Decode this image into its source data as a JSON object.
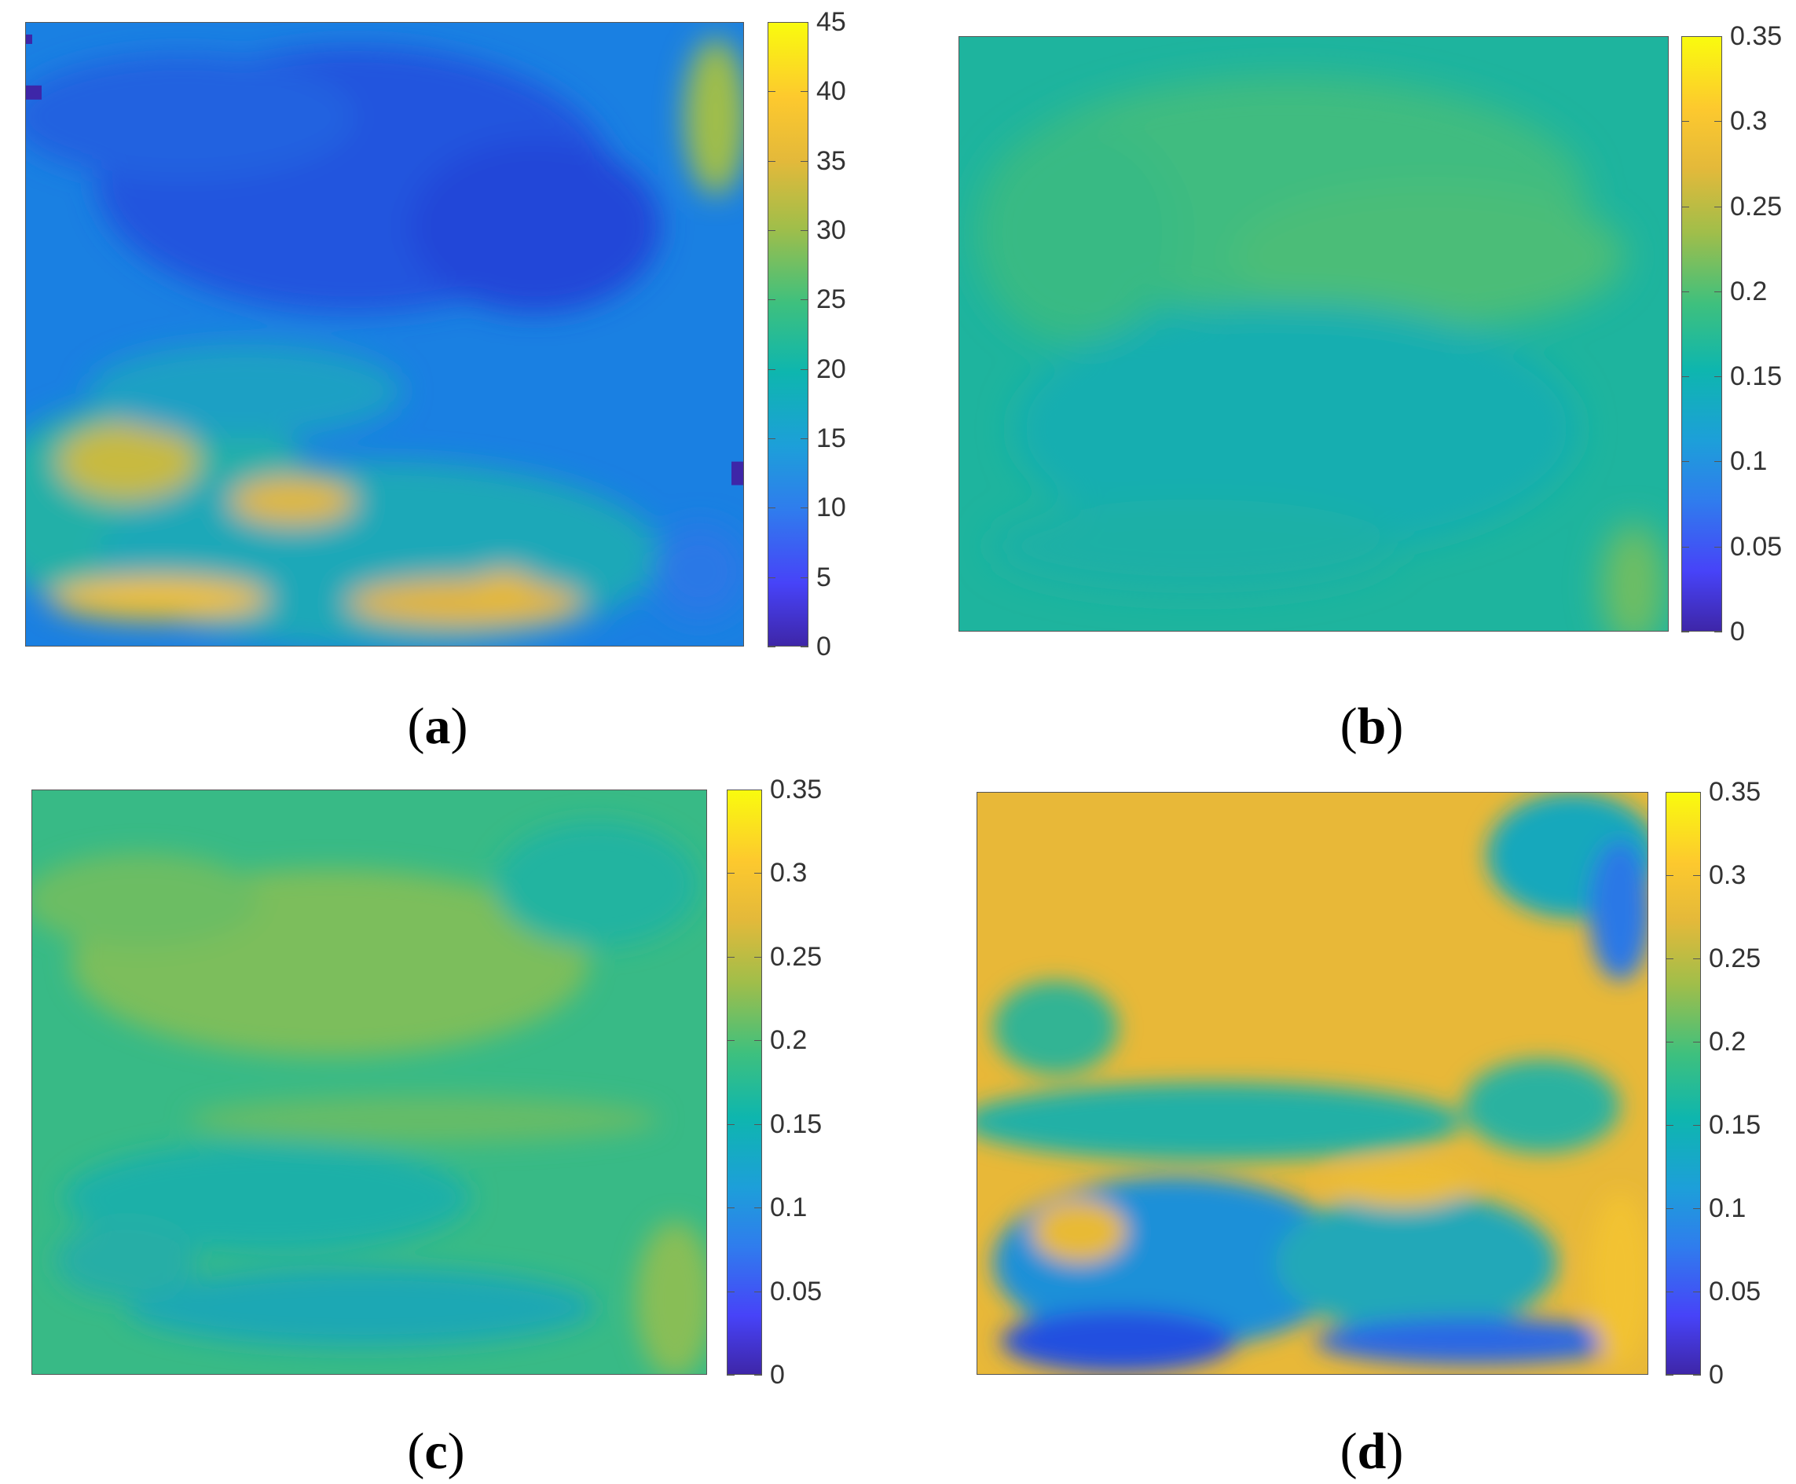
{
  "chart_data": [
    {
      "type": "heatmap",
      "panel_label": "a",
      "colorbar": {
        "ticks": [
          "0",
          "5",
          "10",
          "15",
          "20",
          "25",
          "30",
          "35",
          "40",
          "45"
        ],
        "min": 0,
        "max": 45
      },
      "colormap": "parula",
      "grid": false,
      "legend": "colorbar right"
    },
    {
      "type": "heatmap",
      "panel_label": "b",
      "colorbar": {
        "ticks": [
          "0",
          "0.05",
          "0.1",
          "0.15",
          "0.2",
          "0.25",
          "0.3",
          "0.35"
        ],
        "min": 0,
        "max": 0.35
      },
      "colormap": "parula",
      "grid": false,
      "legend": "colorbar right"
    },
    {
      "type": "heatmap",
      "panel_label": "c",
      "colorbar": {
        "ticks": [
          "0",
          "0.05",
          "0.1",
          "0.15",
          "0.2",
          "0.25",
          "0.3",
          "0.35"
        ],
        "min": 0,
        "max": 0.35
      },
      "colormap": "parula",
      "grid": false,
      "legend": "colorbar right"
    },
    {
      "type": "heatmap",
      "panel_label": "d",
      "colorbar": {
        "ticks": [
          "0",
          "0.05",
          "0.1",
          "0.15",
          "0.2",
          "0.25",
          "0.3",
          "0.35"
        ],
        "min": 0,
        "max": 0.35
      },
      "colormap": "parula",
      "grid": false,
      "legend": "colorbar right"
    }
  ],
  "captions": {
    "a": {
      "open": "(",
      "letter": "a",
      "close": ")"
    },
    "b": {
      "open": "(",
      "letter": "b",
      "close": ")"
    },
    "c": {
      "open": "(",
      "letter": "c",
      "close": ")"
    },
    "d": {
      "open": "(",
      "letter": "d",
      "close": ")"
    }
  },
  "colors": {
    "parula_low": "#3e26a8",
    "parula_blue": "#2f7ded",
    "parula_teal": "#0eb6ae",
    "parula_green": "#3ec07e",
    "parula_olive": "#a0be4a",
    "parula_orange": "#fdc92e",
    "parula_high": "#f9fb0e"
  }
}
